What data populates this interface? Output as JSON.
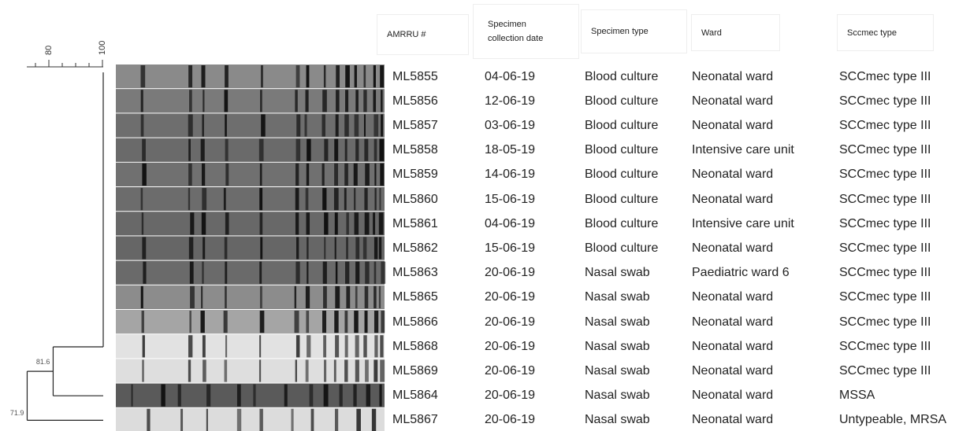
{
  "scale": {
    "ticks": [
      80,
      100
    ]
  },
  "nodes": [
    {
      "label": "81.6",
      "value": 81.6
    },
    {
      "label": "71.9",
      "value": 71.9
    }
  ],
  "table": {
    "headers": [
      "AMRRU #",
      "Specimen collection date",
      "Specimen type",
      "Ward",
      "Sccmec type"
    ],
    "rows": [
      [
        "ML5855",
        "04-06-19",
        "Blood culture",
        "Neonatal ward",
        "SCCmec type III"
      ],
      [
        "ML5856",
        "12-06-19",
        "Blood culture",
        "Neonatal ward",
        "SCCmec type III"
      ],
      [
        "ML5857",
        "03-06-19",
        "Blood culture",
        "Neonatal ward",
        "SCCmec type III"
      ],
      [
        "ML5858",
        "18-05-19",
        "Blood culture",
        "Intensive care unit",
        "SCCmec type III"
      ],
      [
        "ML5859",
        "14-06-19",
        "Blood culture",
        "Neonatal ward",
        "SCCmec type III"
      ],
      [
        "ML5860",
        "15-06-19",
        "Blood culture",
        "Neonatal ward",
        "SCCmec type III"
      ],
      [
        "ML5861",
        "04-06-19",
        "Blood culture",
        "Intensive care unit",
        "SCCmec type III"
      ],
      [
        "ML5862",
        "15-06-19",
        "Blood culture",
        "Neonatal ward",
        "SCCmec type III"
      ],
      [
        "ML5863",
        "20-06-19",
        "Nasal swab",
        "Paediatric ward 6",
        "SCCmec type III"
      ],
      [
        "ML5865",
        "20-06-19",
        "Nasal swab",
        "Neonatal ward",
        "SCCmec type III"
      ],
      [
        "ML5866",
        "20-06-19",
        "Nasal swab",
        "Neonatal ward",
        "SCCmec type III"
      ],
      [
        "ML5868",
        "20-06-19",
        "Nasal swab",
        "Neonatal ward",
        "SCCmec type III"
      ],
      [
        "ML5869",
        "20-06-19",
        "Nasal swab",
        "Neonatal ward",
        "SCCmec type III"
      ],
      [
        "ML5864",
        "20-06-19",
        "Nasal swab",
        "Neonatal ward",
        "MSSA"
      ],
      [
        "ML5867",
        "20-06-19",
        "Nasal swab",
        "Neonatal ward",
        "Untypeable, MRSA"
      ]
    ]
  }
}
